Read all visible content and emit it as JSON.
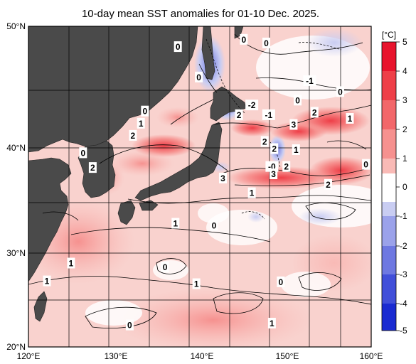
{
  "title": "10-day mean SST anomalies for 01-10 Dec. 2025.",
  "colorbar": {
    "unit": "[°C]",
    "ticks": [
      "5",
      "4",
      "3",
      "2",
      "1",
      "0",
      "-1",
      "-2",
      "-3",
      "-4",
      "-5"
    ],
    "colors": {
      "warm_5": "#e8142d",
      "warm_4": "#ee3f48",
      "warm_3": "#f2676a",
      "warm_2": "#f6918f",
      "warm_1": "#f9bab6",
      "neutral": "#ffffff",
      "cool_1": "#c9cdf2",
      "cool_2": "#9ba2ea",
      "cool_3": "#6e78e1",
      "cool_4": "#414fd9",
      "cool_5": "#1a2bd1"
    }
  },
  "axes": {
    "x_ticks": [
      "120°E",
      "130°E",
      "140°E",
      "150°E",
      "160°E"
    ],
    "y_ticks": [
      "50°N",
      "40°N",
      "30°N",
      "20°N"
    ]
  },
  "land_color": "#4a4a4a",
  "contour_labels": [
    {
      "text": "0",
      "lon": 138.6,
      "lat": 48.3
    },
    {
      "text": "0",
      "lon": 141.2,
      "lat": 45.8
    },
    {
      "text": "0",
      "lon": 146.8,
      "lat": 48.9
    },
    {
      "text": "0",
      "lon": 149.6,
      "lat": 48.6
    },
    {
      "text": "-1",
      "lon": 155.0,
      "lat": 45.5
    },
    {
      "text": "0",
      "lon": 158.8,
      "lat": 44.6
    },
    {
      "text": "0",
      "lon": 134.5,
      "lat": 43.0
    },
    {
      "text": "1",
      "lon": 134.0,
      "lat": 42.0
    },
    {
      "text": "2",
      "lon": 133.0,
      "lat": 41.0
    },
    {
      "text": "0",
      "lon": 126.8,
      "lat": 39.5
    },
    {
      "text": "2",
      "lon": 128.0,
      "lat": 38.1
    },
    {
      "text": "-2",
      "lon": 147.8,
      "lat": 43.5
    },
    {
      "text": "2",
      "lon": 146.2,
      "lat": 42.7
    },
    {
      "text": "-1",
      "lon": 149.9,
      "lat": 42.7
    },
    {
      "text": "0",
      "lon": 153.5,
      "lat": 43.9
    },
    {
      "text": "3",
      "lon": 153.0,
      "lat": 41.9
    },
    {
      "text": "2",
      "lon": 155.6,
      "lat": 42.9
    },
    {
      "text": "1",
      "lon": 160.0,
      "lat": 42.4
    },
    {
      "text": "2",
      "lon": 149.4,
      "lat": 40.5
    },
    {
      "text": "2",
      "lon": 150.6,
      "lat": 39.9
    },
    {
      "text": "1",
      "lon": 153.3,
      "lat": 39.8
    },
    {
      "text": "-0",
      "lon": 150.3,
      "lat": 38.2
    },
    {
      "text": "2",
      "lon": 152.1,
      "lat": 38.2
    },
    {
      "text": "3",
      "lon": 150.5,
      "lat": 37.5
    },
    {
      "text": "0",
      "lon": 162.0,
      "lat": 38.4
    },
    {
      "text": "3",
      "lon": 144.2,
      "lat": 37.1
    },
    {
      "text": "2",
      "lon": 157.3,
      "lat": 36.5
    },
    {
      "text": "1",
      "lon": 147.8,
      "lat": 35.7
    },
    {
      "text": "1",
      "lon": 138.3,
      "lat": 32.8
    },
    {
      "text": "0",
      "lon": 143.1,
      "lat": 32.6
    },
    {
      "text": "1",
      "lon": 125.3,
      "lat": 28.9
    },
    {
      "text": "0",
      "lon": 137.0,
      "lat": 28.5
    },
    {
      "text": "1",
      "lon": 122.3,
      "lat": 27.0
    },
    {
      "text": "1",
      "lon": 140.9,
      "lat": 26.7
    },
    {
      "text": "0",
      "lon": 151.4,
      "lat": 26.9
    },
    {
      "text": "0",
      "lon": 132.6,
      "lat": 22.3
    },
    {
      "text": "1",
      "lon": 150.3,
      "lat": 22.5
    }
  ]
}
